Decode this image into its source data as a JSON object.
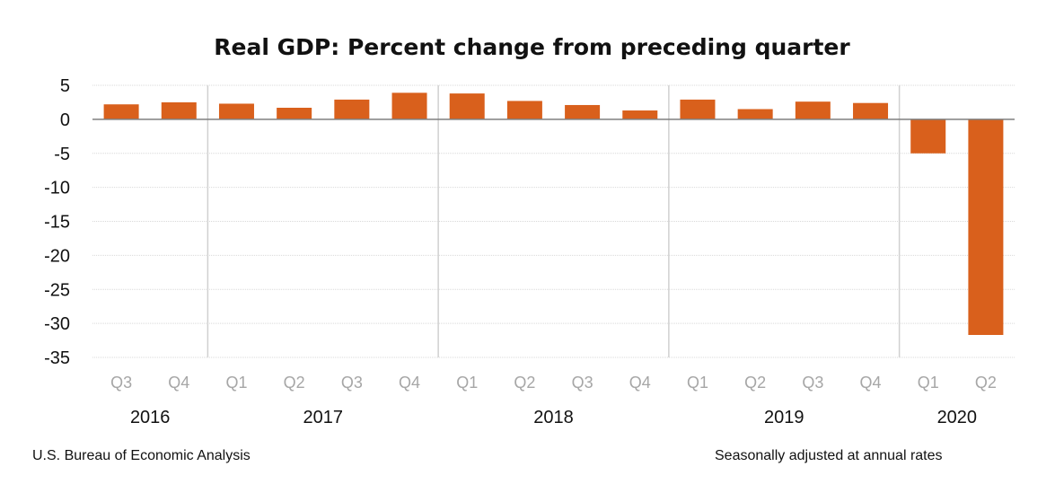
{
  "chart_data": {
    "type": "bar",
    "title": "Real GDP:  Percent change from preceding quarter",
    "xlabel": "",
    "ylabel": "",
    "ylim": [
      -35,
      5
    ],
    "yticks": [
      5,
      0,
      -5,
      -10,
      -15,
      -20,
      -25,
      -30,
      -35
    ],
    "ytick_labels": [
      "5",
      "0",
      "-5",
      "-10",
      "-15",
      "-20",
      "-25",
      "-30",
      "-35"
    ],
    "categories": [
      "Q3",
      "Q4",
      "Q1",
      "Q2",
      "Q3",
      "Q4",
      "Q1",
      "Q2",
      "Q3",
      "Q4",
      "Q1",
      "Q2",
      "Q3",
      "Q4",
      "Q1",
      "Q2"
    ],
    "years": [
      {
        "label": "2016",
        "start": 0,
        "end": 1
      },
      {
        "label": "2017",
        "start": 2,
        "end": 5
      },
      {
        "label": "2018",
        "start": 6,
        "end": 9
      },
      {
        "label": "2019",
        "start": 10,
        "end": 13
      },
      {
        "label": "2020",
        "start": 14,
        "end": 15
      }
    ],
    "values": [
      2.2,
      2.5,
      2.3,
      1.7,
      2.9,
      3.9,
      3.8,
      2.7,
      2.1,
      1.3,
      2.9,
      1.5,
      2.6,
      2.4,
      -5.0,
      -31.7
    ],
    "bar_color": "#d9601c",
    "grid": true,
    "legend": "none"
  },
  "footer": {
    "source": "U.S. Bureau of Economic Analysis",
    "note": "Seasonally adjusted at annual rates"
  }
}
